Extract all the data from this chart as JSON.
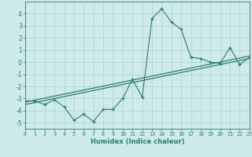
{
  "x": [
    0,
    1,
    2,
    3,
    4,
    5,
    6,
    7,
    8,
    9,
    10,
    11,
    12,
    13,
    14,
    15,
    16,
    17,
    18,
    19,
    20,
    21,
    22,
    23
  ],
  "y_line": [
    -3.2,
    -3.2,
    -3.5,
    -3.1,
    -3.7,
    -4.8,
    -4.3,
    -4.9,
    -3.9,
    -3.9,
    -3.0,
    -1.4,
    -2.9,
    3.6,
    4.4,
    3.3,
    2.7,
    0.4,
    0.3,
    0.0,
    -0.1,
    1.2,
    -0.2,
    0.4
  ],
  "trend1_x": [
    0,
    23
  ],
  "trend1_y": [
    -3.3,
    0.5
  ],
  "trend2_x": [
    0,
    23
  ],
  "trend2_y": [
    -3.5,
    0.3
  ],
  "line_color": "#2d7d6d",
  "bg_color": "#ceeaea",
  "grid_color": "#b0d4d4",
  "xlabel": "Humidex (Indice chaleur)",
  "xlim": [
    0,
    23
  ],
  "ylim": [
    -5.5,
    5.0
  ],
  "yticks": [
    -5,
    -4,
    -3,
    -2,
    -1,
    0,
    1,
    2,
    3,
    4
  ],
  "xticks": [
    0,
    1,
    2,
    3,
    4,
    5,
    6,
    7,
    8,
    9,
    10,
    11,
    12,
    13,
    14,
    15,
    16,
    17,
    18,
    19,
    20,
    21,
    22,
    23
  ]
}
